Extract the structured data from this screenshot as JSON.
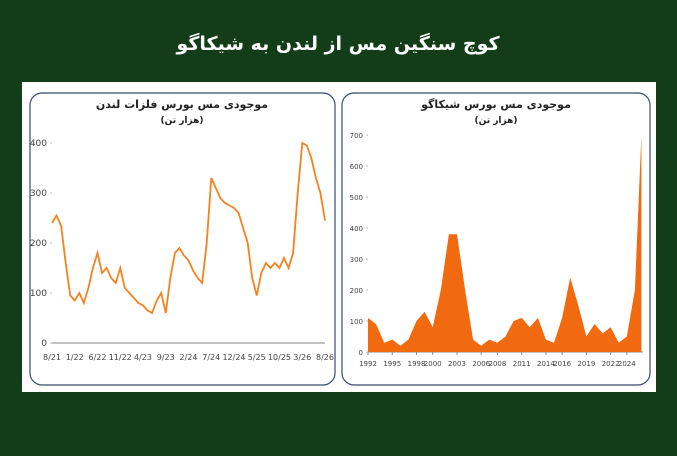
{
  "title": "کوچ سنگین مس از لندن به شیکاگو",
  "chart_data": [
    {
      "type": "line",
      "title": "موجودی مس بورس فلزات لندن",
      "subtitle": "(هزار تن)",
      "color": "#f5821f",
      "categories": [
        "8/21",
        null,
        null,
        null,
        null,
        "1/22",
        null,
        null,
        null,
        null,
        "6/22",
        null,
        null,
        null,
        null,
        "11/22",
        null,
        null,
        null,
        null,
        "4/23",
        null,
        null,
        null,
        null,
        "9/23",
        null,
        null,
        null,
        null,
        "2/24",
        null,
        null,
        null,
        null,
        "7/24",
        null,
        null,
        null,
        null,
        "12/24",
        null,
        null,
        null,
        null,
        "5/25",
        null,
        null,
        null,
        null,
        "10/25",
        null,
        null,
        null,
        null,
        "3/26",
        null,
        null,
        null,
        null,
        "8/26"
      ],
      "values": [
        240,
        255,
        235,
        160,
        95,
        85,
        100,
        80,
        110,
        150,
        180,
        140,
        150,
        130,
        120,
        150,
        110,
        100,
        90,
        80,
        75,
        65,
        60,
        85,
        100,
        60,
        130,
        180,
        190,
        175,
        165,
        145,
        130,
        120,
        200,
        330,
        310,
        290,
        280,
        275,
        270,
        260,
        230,
        200,
        130,
        95,
        140,
        160,
        150,
        160,
        150,
        170,
        150,
        180,
        300,
        400,
        395,
        370,
        330,
        300,
        245
      ],
      "ylim": [
        0,
        420
      ],
      "yticks": [
        0,
        100,
        200,
        300,
        400
      ]
    },
    {
      "type": "area",
      "title": "موجودی مس بورس شیکاگو",
      "subtitle": "(هزار تن)",
      "color": "#f26a0f",
      "x": [
        1992,
        1993,
        1994,
        1995,
        1996,
        1997,
        1998,
        1999,
        2000,
        2001,
        2002,
        2003,
        2004,
        2005,
        2006,
        2007,
        2008,
        2009,
        2010,
        2011,
        2012,
        2013,
        2014,
        2015,
        2016,
        2017,
        2018,
        2019,
        2020,
        2021,
        2022,
        2023,
        2024,
        2025,
        2025.8
      ],
      "values": [
        110,
        90,
        30,
        40,
        20,
        40,
        100,
        130,
        80,
        200,
        380,
        380,
        200,
        40,
        20,
        40,
        30,
        50,
        100,
        110,
        80,
        110,
        40,
        30,
        110,
        240,
        150,
        50,
        90,
        60,
        80,
        30,
        50,
        200,
        700
      ],
      "xlim": [
        1992,
        2026
      ],
      "xticks": [
        1992,
        1995,
        1998,
        2000,
        2003,
        2006,
        2008,
        2011,
        2014,
        2016,
        2019,
        2022,
        2024
      ],
      "ylim": [
        0,
        700
      ],
      "yticks": [
        0,
        100,
        200,
        300,
        400,
        500,
        600,
        700
      ]
    }
  ]
}
